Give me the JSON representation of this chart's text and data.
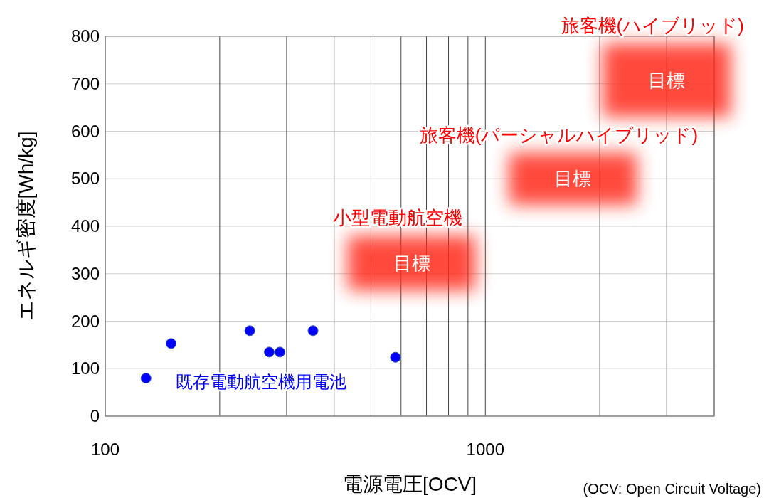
{
  "chart_data": {
    "type": "scatter",
    "xlabel": "電源電圧[OCV]",
    "ylabel": "エネルギ密度[Wh/kg]",
    "log": "x",
    "grid": true,
    "marker": "circle",
    "x": [
      128,
      149,
      240,
      270,
      288,
      352,
      580
    ],
    "series": [
      {
        "name": "既存電動航空機用電池",
        "color": "#0000ff",
        "values": [
          80,
          153,
          180,
          135,
          135,
          180,
          124
        ]
      },
      {
        "type": "bar",
        "color": "#ff2a1a",
        "x": [
          640,
          1700,
          3000
        ],
        "base": [
          265,
          445,
          630
        ],
        "values": [
          115,
          110,
          155
        ],
        "value_labels": [
          "目標",
          "目標",
          "目標"
        ]
      }
    ],
    "xlim": [
      100,
      4000
    ],
    "ylim": [
      0,
      800
    ],
    "xticks": [
      100,
      {
        "value": 200,
        "label": null
      },
      {
        "value": 300,
        "label": null
      },
      {
        "value": 400,
        "label": null
      },
      {
        "value": 500,
        "label": null
      },
      {
        "value": 600,
        "label": null
      },
      {
        "value": 700,
        "label": null
      },
      {
        "value": 800,
        "label": null
      },
      {
        "value": 900,
        "label": null
      },
      1000,
      {
        "value": 2000,
        "label": null
      },
      {
        "value": 3000,
        "label": null
      },
      {
        "value": 4000,
        "label": null
      }
    ],
    "yticks": [
      0,
      100,
      200,
      300,
      400,
      500,
      600,
      700,
      800
    ],
    "annotations": [
      "小型電動航空機",
      "旅客機(パーシャルハイブリッド)",
      "旅客機(ハイブリッド)",
      "(OCV: Open Circuit Voltage)"
    ]
  }
}
